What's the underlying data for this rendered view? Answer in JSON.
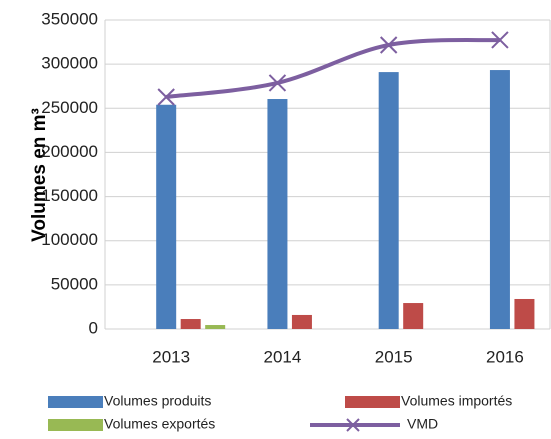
{
  "chart_data": {
    "type": "bar",
    "y_label": "Volumes en m³",
    "categories": [
      "2013",
      "2014",
      "2015",
      "2016"
    ],
    "series": [
      {
        "name": "Volumes produits",
        "color": "#4a7ebb",
        "values": [
          254000,
          260500,
          291000,
          293300
        ]
      },
      {
        "name": "Volumes importés",
        "color": "#be4b48",
        "values": [
          11300,
          15900,
          29400,
          34000
        ]
      },
      {
        "name": "Volumes exportés",
        "color": "#98b954",
        "values": [
          4500,
          0,
          0,
          0
        ]
      },
      {
        "name": "VMD",
        "type": "line",
        "color": "#7d5fa0",
        "values": [
          262800,
          278700,
          321700,
          327400
        ]
      }
    ],
    "ylim": [
      0,
      350000
    ],
    "yticks": [
      0,
      50000,
      100000,
      150000,
      200000,
      250000,
      300000,
      350000
    ],
    "grid": true,
    "legend": "bottom"
  }
}
